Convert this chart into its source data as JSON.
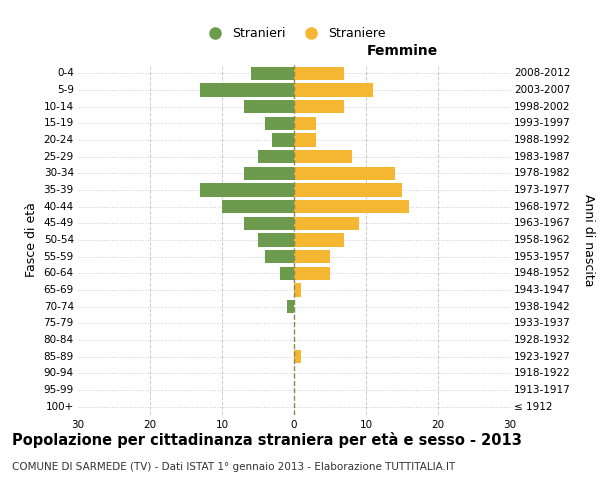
{
  "age_groups": [
    "100+",
    "95-99",
    "90-94",
    "85-89",
    "80-84",
    "75-79",
    "70-74",
    "65-69",
    "60-64",
    "55-59",
    "50-54",
    "45-49",
    "40-44",
    "35-39",
    "30-34",
    "25-29",
    "20-24",
    "15-19",
    "10-14",
    "5-9",
    "0-4"
  ],
  "birth_years": [
    "≤ 1912",
    "1913-1917",
    "1918-1922",
    "1923-1927",
    "1928-1932",
    "1933-1937",
    "1938-1942",
    "1943-1947",
    "1948-1952",
    "1953-1957",
    "1958-1962",
    "1963-1967",
    "1968-1972",
    "1973-1977",
    "1978-1982",
    "1983-1987",
    "1988-1992",
    "1993-1997",
    "1998-2002",
    "2003-2007",
    "2008-2012"
  ],
  "males": [
    0,
    0,
    0,
    0,
    0,
    0,
    1,
    0,
    2,
    4,
    5,
    7,
    10,
    13,
    7,
    5,
    3,
    4,
    7,
    13,
    6
  ],
  "females": [
    0,
    0,
    0,
    1,
    0,
    0,
    0,
    1,
    5,
    5,
    7,
    9,
    16,
    15,
    14,
    8,
    3,
    3,
    7,
    11,
    7
  ],
  "male_color": "#6d9b4e",
  "female_color": "#f5b731",
  "background_color": "#ffffff",
  "grid_color": "#cccccc",
  "dashed_line_color": "#888855",
  "xlim": 30,
  "title": "Popolazione per cittadinanza straniera per età e sesso - 2013",
  "subtitle": "COMUNE DI SARMEDE (TV) - Dati ISTAT 1° gennaio 2013 - Elaborazione TUTTITALIA.IT",
  "xlabel_right": "Femmine",
  "ylabel_left": "Fasce di età",
  "ylabel_right": "Anni di nascita",
  "legend_stranieri": "Stranieri",
  "legend_straniere": "Straniere",
  "title_fontsize": 10.5,
  "subtitle_fontsize": 7.5,
  "tick_fontsize": 7.5,
  "label_fontsize": 9,
  "header_fontsize": 10
}
